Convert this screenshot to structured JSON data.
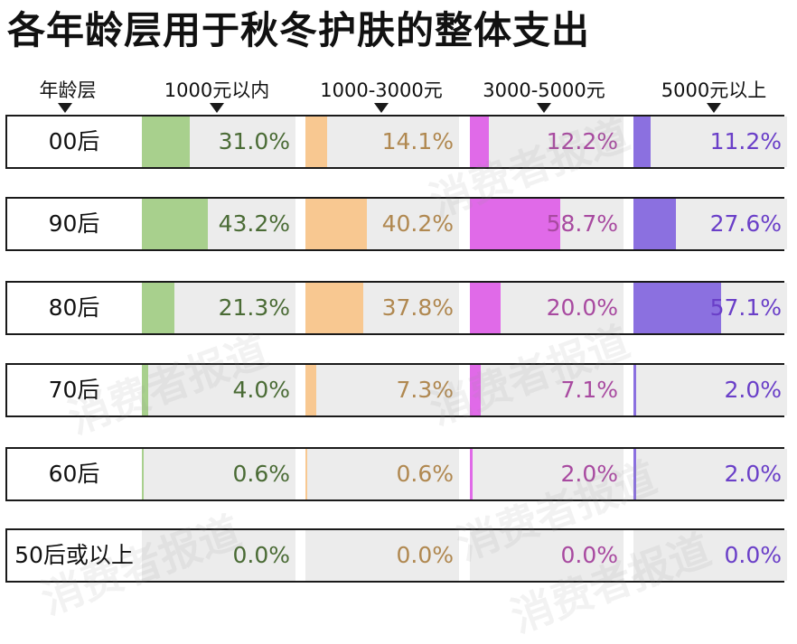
{
  "title": "各年龄层用于秋冬护肤的整体支出",
  "watermark": "消费者报道",
  "colors": {
    "1000元以内": {
      "bar": "#a8d08d",
      "text": "#4a6b35"
    },
    "1000-3000元": {
      "bar": "#f8c891",
      "text": "#b08850"
    },
    "3000-5000元": {
      "bar": "#e06ae8",
      "text": "#a84aa0"
    },
    "5000元以上": {
      "bar": "#8b70e0",
      "text": "#6a3fc8"
    }
  },
  "chart_data": {
    "type": "bar",
    "title": "各年龄层用于秋冬护肤的整体支出",
    "row_header": "年龄层",
    "unit": "%",
    "categories": [
      "00后",
      "90后",
      "80后",
      "70后",
      "60后",
      "50后或以上"
    ],
    "series": [
      {
        "name": "1000元以内",
        "values": [
          31.0,
          43.2,
          21.3,
          4.0,
          0.6,
          0.0
        ],
        "labels": [
          "31.0%",
          "43.2%",
          "21.3%",
          "4.0%",
          "0.6%",
          "0.0%"
        ]
      },
      {
        "name": "1000-3000元",
        "values": [
          14.1,
          40.2,
          37.8,
          7.3,
          0.6,
          0.0
        ],
        "labels": [
          "14.1%",
          "40.2%",
          "37.8%",
          "7.3%",
          "0.6%",
          "0.0%"
        ]
      },
      {
        "name": "3000-5000元",
        "values": [
          12.2,
          58.7,
          20.0,
          7.1,
          2.0,
          0.0
        ],
        "labels": [
          "12.2%",
          "58.7%",
          "20.0%",
          "7.1%",
          "2.0%",
          "0.0%"
        ]
      },
      {
        "name": "5000元以上",
        "values": [
          11.2,
          27.6,
          57.1,
          2.0,
          2.0,
          0.0
        ],
        "labels": [
          "11.2%",
          "27.6%",
          "57.1%",
          "2.0%",
          "2.0%",
          "0.0%"
        ]
      }
    ]
  }
}
